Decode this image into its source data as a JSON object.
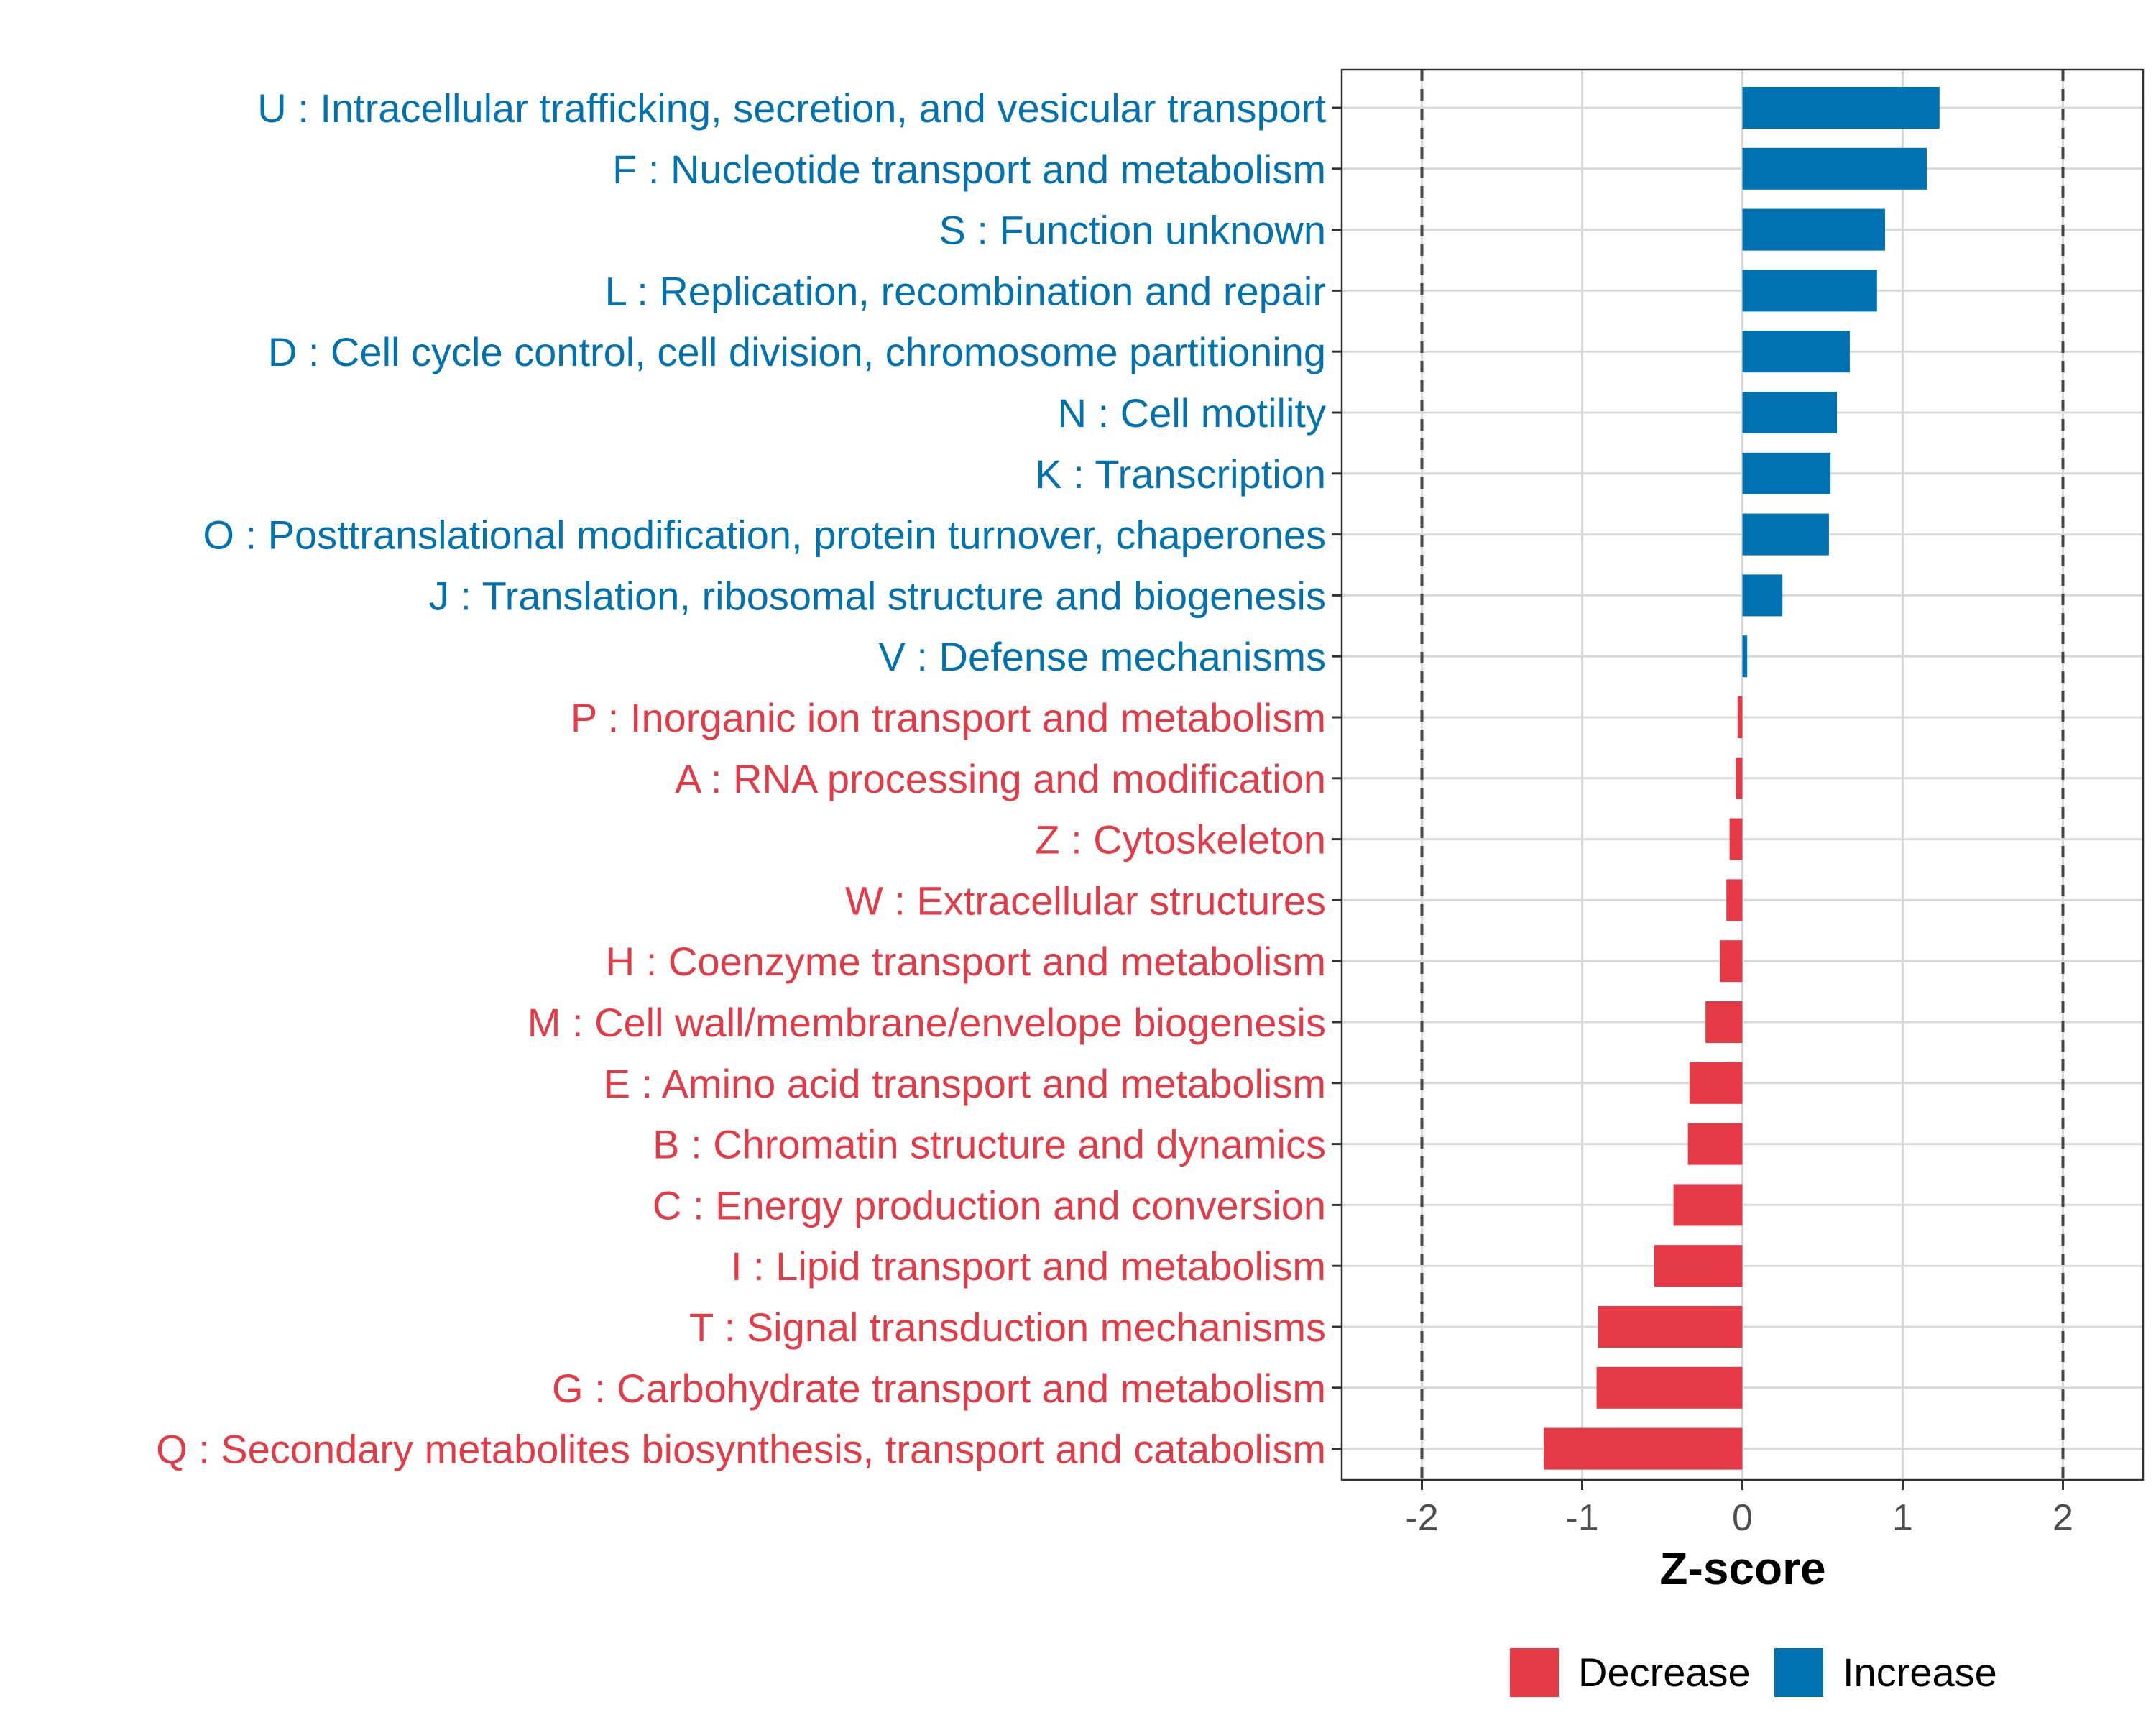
{
  "chart_data": {
    "type": "bar",
    "orientation": "horizontal",
    "title": "",
    "xlabel": "Z-score",
    "ylabel": "",
    "xlim": [
      -2.5,
      2.5
    ],
    "x_ticks": [
      -2,
      -1,
      0,
      1,
      2
    ],
    "x_tick_labels": [
      "-2",
      "-1",
      "0",
      "1",
      "2"
    ],
    "reference_lines": [
      -2,
      2
    ],
    "grid": true,
    "colors": {
      "Increase": "#0072b2",
      "Decrease": "#e63946"
    },
    "legend": {
      "position": "bottom",
      "entries": [
        "Decrease",
        "Increase"
      ]
    },
    "categories": [
      "U : Intracellular trafficking, secretion, and vesicular transport",
      "F : Nucleotide transport and metabolism",
      "S : Function unknown",
      "L : Replication, recombination and repair",
      "D : Cell cycle control, cell division, chromosome partitioning",
      "N : Cell motility",
      "K : Transcription",
      "O : Posttranslational modification, protein turnover, chaperones",
      "J : Translation, ribosomal structure and biogenesis",
      "V : Defense mechanisms",
      "P : Inorganic ion transport and metabolism",
      "A : RNA processing and modification",
      "Z : Cytoskeleton",
      "W : Extracellular structures",
      "H : Coenzyme transport and metabolism",
      "M : Cell wall/membrane/envelope biogenesis",
      "E : Amino acid transport and metabolism",
      "B : Chromatin structure and dynamics",
      "C : Energy production and conversion",
      "I : Lipid transport and metabolism",
      "T : Signal transduction mechanisms",
      "G : Carbohydrate transport and metabolism",
      "Q : Secondary metabolites biosynthesis, transport and catabolism"
    ],
    "values": [
      1.23,
      1.15,
      0.89,
      0.84,
      0.67,
      0.59,
      0.55,
      0.54,
      0.25,
      0.03,
      -0.03,
      -0.04,
      -0.08,
      -0.1,
      -0.14,
      -0.23,
      -0.33,
      -0.34,
      -0.43,
      -0.55,
      -0.9,
      -0.91,
      -1.24
    ],
    "groups": [
      "Increase",
      "Increase",
      "Increase",
      "Increase",
      "Increase",
      "Increase",
      "Increase",
      "Increase",
      "Increase",
      "Increase",
      "Decrease",
      "Decrease",
      "Decrease",
      "Decrease",
      "Decrease",
      "Decrease",
      "Decrease",
      "Decrease",
      "Decrease",
      "Decrease",
      "Decrease",
      "Decrease",
      "Decrease"
    ]
  }
}
